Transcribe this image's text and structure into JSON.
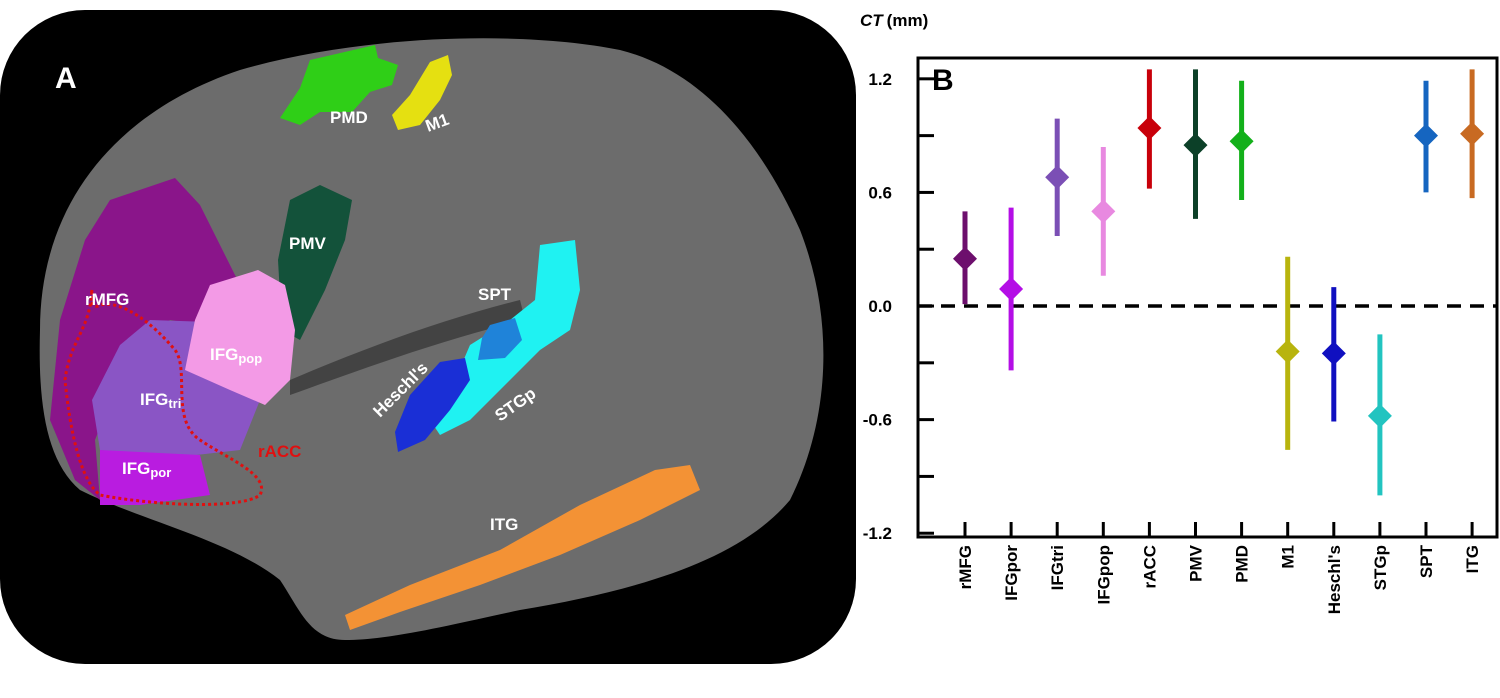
{
  "panel_a": {
    "panel_letter": "A",
    "labels": {
      "pmd": "PMD",
      "m1": "M1",
      "pmv": "PMV",
      "rmfg": "rMFG",
      "spt": "SPT",
      "ifgpop_main": "IFG",
      "ifgpop_sub": "pop",
      "ifgtri_main": "IFG",
      "ifgtri_sub": "tri",
      "heschls": "Heschl's",
      "stgp": "STGp",
      "racc": "rACC",
      "ifgpor_main": "IFG",
      "ifgpor_sub": "por",
      "itg": "ITG"
    },
    "colors": {
      "background": "#000000",
      "cortex": "#6e6e6e",
      "racc_outline": "#e01010"
    }
  },
  "chart_data": {
    "type": "scatter",
    "panel_letter": "B",
    "ylabel_italic": "CT",
    "ylabel_unit": "(mm)",
    "ylim": [
      -1.22,
      1.31
    ],
    "yticks": [
      -1.2,
      -0.9,
      -0.6,
      -0.3,
      0.0,
      0.3,
      0.6,
      0.9,
      1.2
    ],
    "ytick_labels": [
      "1.2",
      "0.6",
      "0.0",
      "-0.6",
      "-1.2"
    ],
    "ytick_label_values": [
      1.2,
      0.6,
      0.0,
      -0.6,
      -1.2
    ],
    "reference_line": {
      "y": 0,
      "style": "dashed"
    },
    "grid": false,
    "marker": "diamond with error bar",
    "categories": [
      "rMFG",
      "IFGpor",
      "IFGtri",
      "IFGpop",
      "rACC",
      "PMV",
      "PMD",
      "M1",
      "Heschl's",
      "STGp",
      "SPT",
      "ITG"
    ],
    "values": [
      0.25,
      0.09,
      0.68,
      0.5,
      0.94,
      0.85,
      0.87,
      -0.24,
      -0.25,
      -0.58,
      0.9,
      0.91
    ],
    "error_low": [
      0.01,
      -0.34,
      0.37,
      0.16,
      0.62,
      0.46,
      0.56,
      -0.76,
      -0.61,
      -1.0,
      0.6,
      0.57
    ],
    "error_high": [
      0.5,
      0.52,
      0.99,
      0.84,
      1.25,
      1.25,
      1.19,
      0.26,
      0.1,
      -0.15,
      1.19,
      1.25
    ],
    "colors": [
      "#6d0f6d",
      "#b40ee6",
      "#7b4fb5",
      "#e889e0",
      "#c8000a",
      "#0c4028",
      "#13b01a",
      "#b8b40e",
      "#1010c0",
      "#22c4c0",
      "#1565c0",
      "#c86a22"
    ]
  }
}
